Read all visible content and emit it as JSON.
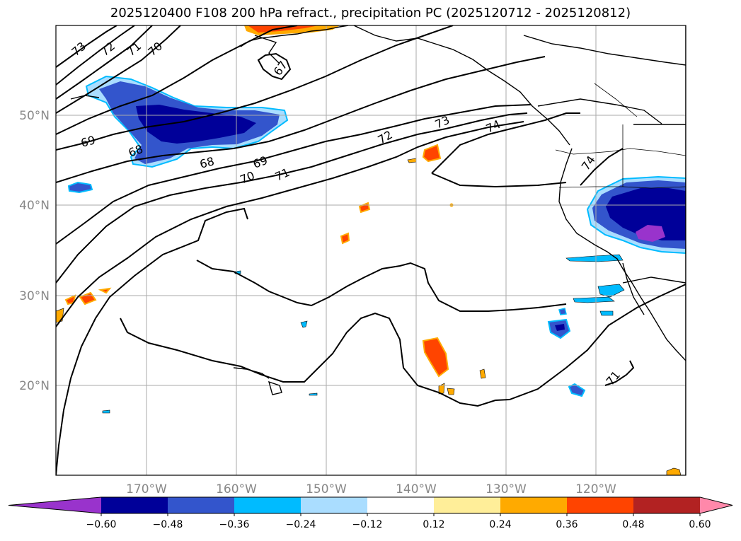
{
  "title": "2025120400 F108 200 hPa refract., precipitation PC (2025120712 - 2025120812)",
  "map": {
    "lon_range": [
      -180,
      -110
    ],
    "lat_range": [
      10,
      60
    ],
    "gridlines": true,
    "lon_ticks": [
      {
        "lon": -170,
        "label": "170°W"
      },
      {
        "lon": -160,
        "label": "160°W"
      },
      {
        "lon": -150,
        "label": "150°W"
      },
      {
        "lon": -140,
        "label": "140°W"
      },
      {
        "lon": -130,
        "label": "130°W"
      },
      {
        "lon": -120,
        "label": "120°W"
      }
    ],
    "lat_ticks": [
      {
        "lat": 50,
        "label": "50°N"
      },
      {
        "lat": 40,
        "label": "40°N"
      },
      {
        "lat": 30,
        "label": "30°N"
      },
      {
        "lat": 20,
        "label": "20°N"
      }
    ],
    "contour_labels": [
      "73",
      "72",
      "71",
      "70",
      "67",
      "69",
      "68",
      "68",
      "69",
      "70",
      "71",
      "72",
      "73",
      "74",
      "74",
      "71"
    ]
  },
  "colorbar": {
    "ticks": [
      "−0.60",
      "−0.48",
      "−0.36",
      "−0.24",
      "−0.12",
      "0.12",
      "0.24",
      "0.36",
      "0.48",
      "0.60"
    ],
    "colors": [
      "#9933cc",
      "#000099",
      "#3355cc",
      "#00bbff",
      "#aaddff",
      "#ffffff",
      "#ffee99",
      "#ffaa00",
      "#ff4400",
      "#b22222",
      "#ff88aa"
    ]
  }
}
